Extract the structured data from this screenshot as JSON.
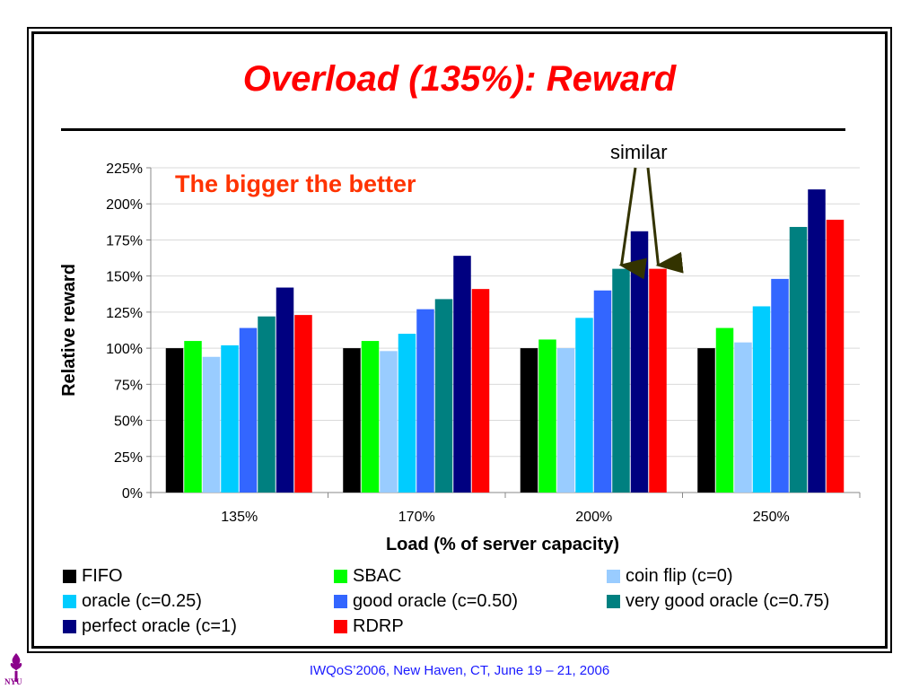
{
  "slide": {
    "title": "Overload (135%): Reward",
    "annotation_main": "The bigger the better",
    "annotation_similar": "similar",
    "footer": "IWQoS’2006, New Haven, CT, June 19 – 21, 2006",
    "logo_text": "NYU"
  },
  "colors": {
    "title": "#ff0000",
    "annotation": "#ff3300",
    "footer": "#1a1aff",
    "arrow": "#333300"
  },
  "chart_data": {
    "type": "bar",
    "categories": [
      "135%",
      "170%",
      "200%",
      "250%"
    ],
    "xlabel": "Load (% of server capacity)",
    "ylabel": "Relative reward",
    "ylim": [
      0,
      225
    ],
    "yticks": [
      "0%",
      "25%",
      "50%",
      "75%",
      "100%",
      "125%",
      "150%",
      "175%",
      "200%",
      "225%"
    ],
    "grid": true,
    "legend_position": "bottom",
    "series": [
      {
        "name": "FIFO",
        "color": "#000000",
        "values": [
          100,
          100,
          100,
          100
        ]
      },
      {
        "name": "SBAC",
        "color": "#00ff00",
        "values": [
          105,
          105,
          106,
          114
        ]
      },
      {
        "name": "coin flip (c=0)",
        "color": "#99ccff",
        "values": [
          94,
          98,
          100,
          104
        ]
      },
      {
        "name": "oracle (c=0.25)",
        "color": "#00ccff",
        "values": [
          102,
          110,
          121,
          129
        ]
      },
      {
        "name": "good oracle (c=0.50)",
        "color": "#3366ff",
        "values": [
          114,
          127,
          140,
          148
        ]
      },
      {
        "name": "very good oracle (c=0.75)",
        "color": "#008080",
        "values": [
          122,
          134,
          155,
          184
        ]
      },
      {
        "name": "perfect oracle (c=1)",
        "color": "#000080",
        "values": [
          142,
          164,
          181,
          210
        ]
      },
      {
        "name": "RDRP",
        "color": "#ff0000",
        "values": [
          123,
          141,
          155,
          189
        ]
      }
    ]
  }
}
